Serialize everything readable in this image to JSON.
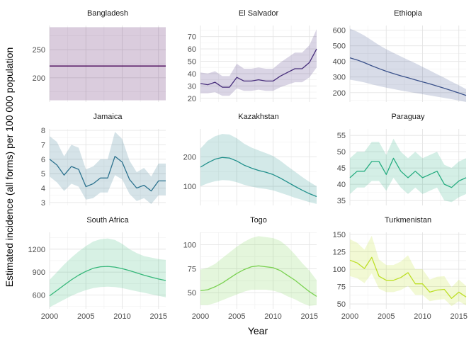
{
  "chart_data": {
    "type": "line",
    "layout": "facet-grid-3x3",
    "xlabel": "Year",
    "ylabel": "Estimated incidence (all forms) per 100 000 population",
    "x": [
      2000,
      2001,
      2002,
      2003,
      2004,
      2005,
      2006,
      2007,
      2008,
      2009,
      2010,
      2011,
      2012,
      2013,
      2014,
      2015,
      2016
    ],
    "xlim": [
      2000,
      2016
    ],
    "xticks": [
      "2000",
      "2005",
      "2010",
      "2015"
    ],
    "grid": true,
    "legend": "none",
    "band": "shaded uncertainty interval (low to high) around each line",
    "panels": [
      {
        "title": "Bangladesh",
        "color": "#440154",
        "ylim": [
          157,
          293
        ],
        "yticks": [
          200,
          250
        ],
        "values": [
          221,
          221,
          221,
          221,
          221,
          221,
          221,
          221,
          221,
          221,
          221,
          221,
          221,
          221,
          221,
          221,
          221
        ],
        "low": [
          160,
          160,
          160,
          160,
          160,
          160,
          160,
          160,
          160,
          160,
          160,
          160,
          160,
          160,
          160,
          160,
          160
        ],
        "high": [
          290,
          290,
          290,
          290,
          290,
          290,
          290,
          290,
          290,
          290,
          290,
          290,
          290,
          290,
          290,
          290,
          290
        ]
      },
      {
        "title": "El Salvador",
        "color": "#472d7b",
        "ylim": [
          17,
          79
        ],
        "yticks": [
          20,
          30,
          40,
          50,
          60,
          70
        ],
        "values": [
          32,
          31,
          33,
          29,
          29,
          37,
          34,
          34,
          35,
          34,
          34,
          38,
          41,
          44,
          44,
          49,
          60
        ],
        "low": [
          24,
          24,
          25,
          22,
          22,
          28,
          26,
          26,
          27,
          26,
          26,
          29,
          31,
          33,
          33,
          37,
          45
        ],
        "high": [
          41,
          40,
          42,
          38,
          38,
          48,
          44,
          44,
          45,
          44,
          44,
          49,
          53,
          57,
          57,
          63,
          76
        ]
      },
      {
        "title": "Ethiopia",
        "color": "#3b528b",
        "ylim": [
          140,
          630
        ],
        "yticks": [
          200,
          300,
          400,
          500,
          600
        ],
        "values": [
          423,
          409,
          392,
          372,
          354,
          337,
          322,
          308,
          295,
          282,
          269,
          256,
          242,
          228,
          213,
          198,
          182
        ],
        "low": [
          283,
          275,
          265,
          253,
          242,
          232,
          223,
          214,
          206,
          198,
          190,
          182,
          174,
          166,
          158,
          149,
          140
        ],
        "high": [
          610,
          590,
          565,
          535,
          505,
          478,
          455,
          432,
          410,
          388,
          365,
          342,
          318,
          295,
          270,
          247,
          222
        ]
      },
      {
        "title": "Jamaica",
        "color": "#2c728e",
        "ylim": [
          2.8,
          8.1
        ],
        "yticks": [
          3,
          4,
          5,
          6,
          7,
          8
        ],
        "values": [
          6.0,
          5.6,
          4.9,
          5.5,
          5.3,
          4.1,
          4.3,
          4.7,
          4.7,
          6.2,
          5.8,
          4.6,
          4.0,
          4.2,
          3.8,
          4.5,
          4.5
        ],
        "low": [
          4.8,
          4.4,
          3.8,
          4.3,
          4.1,
          3.2,
          3.3,
          3.7,
          3.7,
          4.9,
          4.6,
          3.6,
          3.1,
          3.3,
          2.9,
          3.5,
          3.5
        ],
        "high": [
          7.6,
          7.2,
          6.2,
          7.0,
          6.8,
          5.3,
          5.5,
          6.0,
          6.0,
          7.9,
          7.4,
          5.9,
          5.1,
          5.4,
          4.8,
          5.7,
          5.7
        ]
      },
      {
        "title": "Kazakhstan",
        "color": "#21908c",
        "ylim": [
          35,
          295
        ],
        "yticks": [
          100,
          200
        ],
        "values": [
          165,
          180,
          192,
          198,
          196,
          186,
          172,
          162,
          154,
          148,
          140,
          128,
          114,
          100,
          87,
          75,
          65
        ],
        "low": [
          100,
          110,
          117,
          121,
          120,
          114,
          105,
          99,
          94,
          91,
          86,
          78,
          70,
          61,
          54,
          46,
          40
        ],
        "high": [
          228,
          255,
          270,
          278,
          276,
          263,
          245,
          232,
          222,
          213,
          203,
          187,
          168,
          150,
          132,
          115,
          100
        ]
      },
      {
        "title": "Paraguay",
        "color": "#27ad81",
        "ylim": [
          33.5,
          57
        ],
        "yticks": [
          35,
          40,
          45,
          50,
          55
        ],
        "values": [
          42,
          44,
          44,
          47,
          47,
          43,
          48,
          44,
          42,
          44,
          42,
          43,
          44,
          40,
          39,
          41,
          42
        ],
        "low": [
          37,
          39,
          39,
          41,
          41,
          38,
          42,
          39,
          37,
          39,
          37,
          38,
          39,
          35,
          34.5,
          36,
          37
        ],
        "high": [
          48,
          50,
          50,
          53,
          53,
          49,
          54,
          50,
          48,
          50,
          48,
          49,
          50,
          46,
          45,
          47,
          48
        ]
      },
      {
        "title": "South Africa",
        "color": "#35b779",
        "ylim": [
          420,
          1420
        ],
        "yticks": [
          600,
          900,
          1200
        ],
        "values": [
          590,
          660,
          730,
          800,
          860,
          910,
          950,
          970,
          975,
          965,
          945,
          920,
          890,
          860,
          835,
          810,
          790
        ],
        "low": [
          440,
          490,
          540,
          590,
          630,
          665,
          690,
          705,
          710,
          705,
          690,
          670,
          650,
          630,
          610,
          590,
          570
        ],
        "high": [
          800,
          900,
          1000,
          1090,
          1170,
          1240,
          1300,
          1330,
          1340,
          1320,
          1270,
          1200,
          1150,
          1110,
          1090,
          1070,
          1060
        ]
      },
      {
        "title": "Togo",
        "color": "#7ad151",
        "ylim": [
          33,
          113
        ],
        "yticks": [
          50,
          75,
          100
        ],
        "values": [
          52,
          53,
          56,
          60,
          65,
          70,
          74,
          77,
          78,
          77,
          76,
          73,
          68,
          63,
          57,
          51,
          46
        ],
        "low": [
          37,
          37,
          39,
          42,
          45,
          48,
          51,
          53,
          53,
          53,
          52,
          50,
          46,
          43,
          39,
          36,
          37
        ],
        "high": [
          74,
          76,
          80,
          86,
          92,
          98,
          103,
          107,
          109,
          108,
          107,
          104,
          98,
          90,
          81,
          73,
          63
        ]
      },
      {
        "title": "Turkmenistan",
        "color": "#bddf26",
        "ylim": [
          43,
          153
        ],
        "yticks": [
          50,
          75,
          100,
          125,
          150
        ],
        "values": [
          113,
          109,
          101,
          117,
          90,
          84,
          84,
          88,
          95,
          79,
          79,
          67,
          70,
          71,
          58,
          67,
          60
        ],
        "low": [
          90,
          87,
          80,
          94,
          72,
          67,
          67,
          70,
          76,
          63,
          63,
          54,
          56,
          57,
          47,
          54,
          48
        ],
        "high": [
          143,
          138,
          128,
          148,
          114,
          106,
          106,
          111,
          120,
          100,
          100,
          85,
          89,
          90,
          74,
          85,
          76
        ]
      }
    ]
  }
}
